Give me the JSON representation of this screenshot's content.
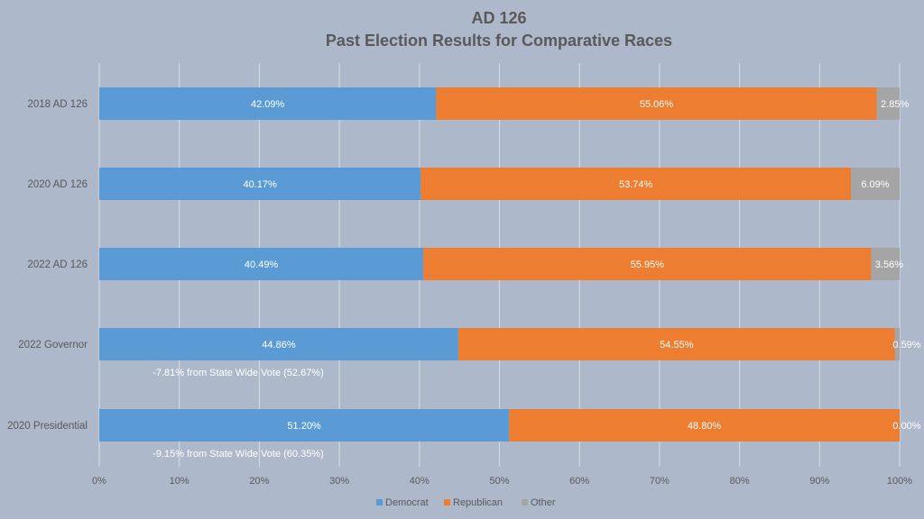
{
  "chart_data": {
    "type": "bar",
    "orientation": "horizontal",
    "stacked": "percent",
    "title": "AD 126",
    "subtitle": "Past Election Results for Comparative Races",
    "categories": [
      "2018 AD 126",
      "2020 AD 126",
      "2022 AD 126",
      "2022 Governor",
      "2020 Presidential"
    ],
    "series": [
      {
        "name": "Democrat",
        "color": "#5b9bd5",
        "values": [
          42.09,
          40.17,
          40.49,
          44.86,
          51.2
        ],
        "labels": [
          "42.09%",
          "40.17%",
          "40.49%",
          "44.86%",
          "51.20%"
        ]
      },
      {
        "name": "Republican",
        "color": "#ed7d31",
        "values": [
          55.06,
          53.74,
          55.95,
          54.55,
          48.8
        ],
        "labels": [
          "55.06%",
          "53.74%",
          "55.95%",
          "54.55%",
          "48.80%"
        ]
      },
      {
        "name": "Other",
        "color": "#a5a5a5",
        "values": [
          2.85,
          6.09,
          3.56,
          0.59,
          0.0
        ],
        "labels": [
          "2.85%",
          "6.09%",
          "3.56%",
          "0.59%",
          "0.00%"
        ]
      }
    ],
    "annotations": [
      {
        "category": "2022 Governor",
        "text": "-7.81% from  State Wide Vote (52.67%)"
      },
      {
        "category": "2020 Presidential",
        "text": "-9.15% from  State Wide Vote (60.35%)"
      }
    ],
    "xlim": [
      0,
      100
    ],
    "x_ticks": [
      0,
      10,
      20,
      30,
      40,
      50,
      60,
      70,
      80,
      90,
      100
    ],
    "x_tick_labels": [
      "0%",
      "10%",
      "20%",
      "30%",
      "40%",
      "50%",
      "60%",
      "70%",
      "80%",
      "90%",
      "100%"
    ],
    "grid": true,
    "legend": {
      "position": "bottom",
      "entries": [
        "Democrat",
        "Republican",
        "Other"
      ]
    },
    "background": "#adb9ca"
  }
}
